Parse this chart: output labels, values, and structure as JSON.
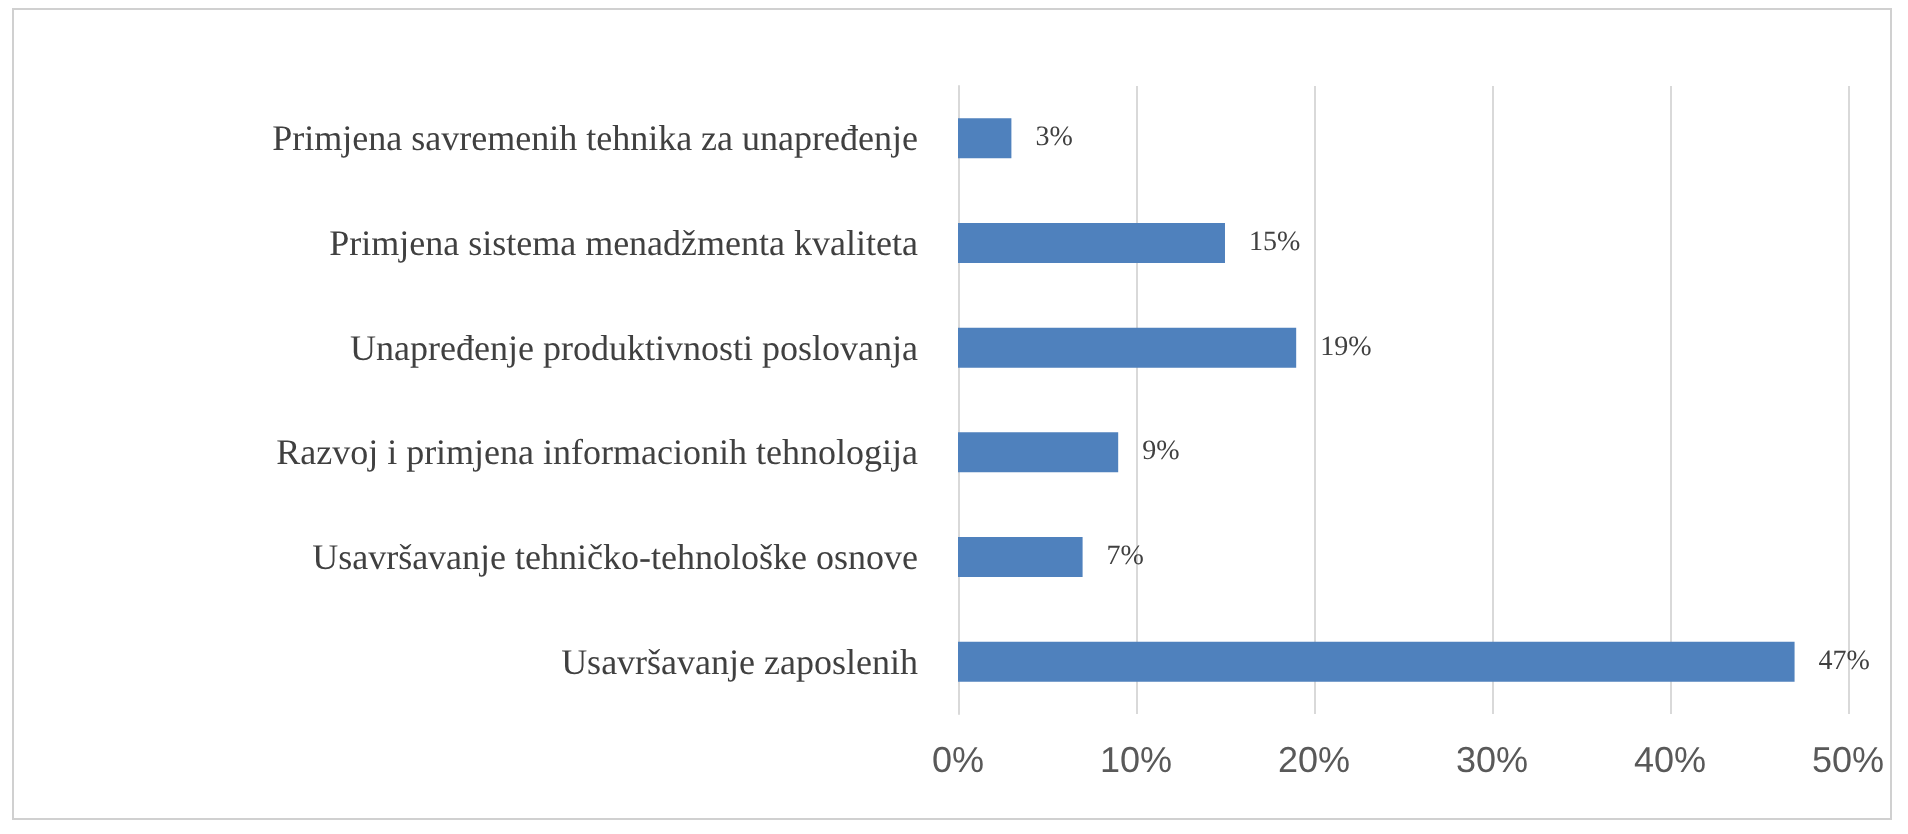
{
  "chart_data": {
    "type": "bar",
    "orientation": "horizontal",
    "categories": [
      "Primjena savremenih tehnika za unapređenje",
      "Primjena sistema menadžmenta kvaliteta",
      "Unapređenje produktivnosti poslovanja",
      "Razvoj i primjena informacionih tehnologija",
      "Usavršavanje tehničko-tehnološke osnove",
      "Usavršavanje zaposlenih"
    ],
    "values": [
      3,
      15,
      19,
      9,
      7,
      47
    ],
    "value_labels": [
      "3%",
      "15%",
      "19%",
      "9%",
      "7%",
      "47%"
    ],
    "color": "#4f81bd",
    "xlim": [
      0,
      50
    ],
    "xticks": [
      {
        "value": 0,
        "label": "0%"
      },
      {
        "value": 10,
        "label": "10%"
      },
      {
        "value": 20,
        "label": "20%"
      },
      {
        "value": 30,
        "label": "30%"
      },
      {
        "value": 40,
        "label": "40%"
      },
      {
        "value": 50,
        "label": "50%"
      }
    ],
    "grid": "x"
  }
}
